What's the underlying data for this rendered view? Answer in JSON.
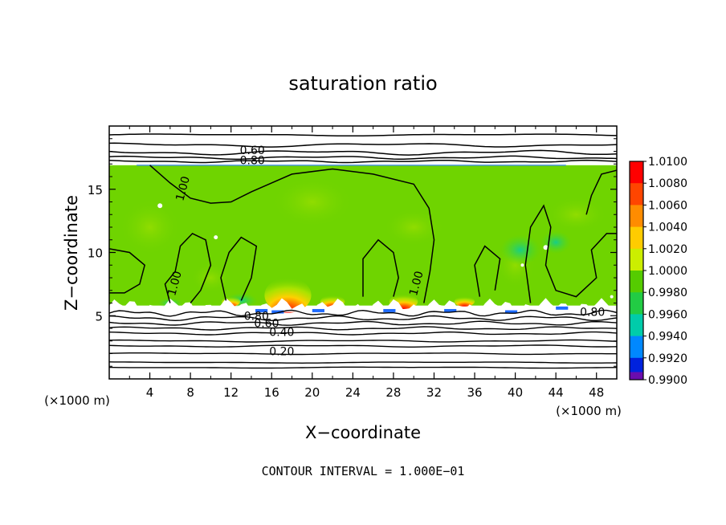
{
  "chart_data": {
    "type": "heatmap",
    "title": "saturation ratio",
    "xlabel": "X−coordinate",
    "ylabel": "Z−coordinate",
    "x_unit_label": "(×1000 m)",
    "z_unit_label": "(×1000 m)",
    "xlim": [
      0,
      50
    ],
    "ylim": [
      0,
      20
    ],
    "x_ticks": [
      4,
      8,
      12,
      16,
      20,
      24,
      28,
      32,
      36,
      40,
      44,
      48
    ],
    "y_ticks": [
      5,
      10,
      15
    ],
    "colorbar": {
      "levels": [
        "1.0100",
        "1.0080",
        "1.0060",
        "1.0040",
        "1.0020",
        "1.0000",
        "0.9980",
        "0.9960",
        "0.9940",
        "0.9920",
        "0.9900"
      ],
      "colors": [
        "#ff0000",
        "#ff4500",
        "#ff8c00",
        "#ffcc00",
        "#ccee00",
        "#55cc00",
        "#22cc44",
        "#00ccaa",
        "#0088ff",
        "#0022dd",
        "#5500aa"
      ],
      "top_color": "#ff9999",
      "bottom_color": "#6a0dad"
    },
    "saturated_layer": {
      "z_bottom": 5.8,
      "z_top": 16.9
    },
    "contour_labels": [
      {
        "text": "0.60",
        "x": 14.1,
        "z": 18.1
      },
      {
        "text": "0.80",
        "x": 14.1,
        "z": 17.3
      },
      {
        "text": "1.00",
        "x": 7.6,
        "z": 15.3
      },
      {
        "text": "1.00",
        "x": 6.8,
        "z": 7.8
      },
      {
        "text": "1.00",
        "x": 30.6,
        "z": 7.8
      },
      {
        "text": "0.80",
        "x": 14.5,
        "z": 5.0
      },
      {
        "text": "0.60",
        "x": 15.5,
        "z": 4.4
      },
      {
        "text": "0.40",
        "x": 17.0,
        "z": 3.7
      },
      {
        "text": "0.20",
        "x": 17.0,
        "z": 2.2
      },
      {
        "text": "0.80",
        "x": 47.6,
        "z": 5.3
      }
    ]
  },
  "footer": {
    "contour_interval": "CONTOUR INTERVAL = 1.000E−01"
  }
}
